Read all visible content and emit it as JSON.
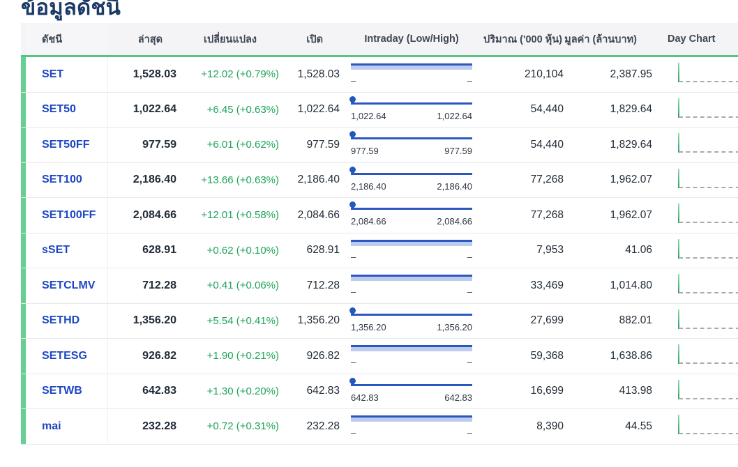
{
  "page": {
    "title": "ข้อมูลดัชนี"
  },
  "table": {
    "headers": [
      "ดัชนี",
      "ล่าสุด",
      "เปลี่ยนแปลง",
      "เปิด",
      "Intraday (Low/High)",
      "ปริมาณ ('000 หุ้น)",
      "มูลค่า (ล้านบาท)",
      "Day Chart"
    ],
    "rows": [
      {
        "index": "SET",
        "last": "1,528.03",
        "change": "+12.02 (+0.79%)",
        "open": "1,528.03",
        "intraday": {
          "type": "bar",
          "low": "–",
          "high": "–"
        },
        "volume": "210,104",
        "value": "2,387.95",
        "day_chart": "green-spike-flat-dashed"
      },
      {
        "index": "SET50",
        "last": "1,022.64",
        "change": "+6.45 (+0.63%)",
        "open": "1,022.64",
        "intraday": {
          "type": "line",
          "low": "1,022.64",
          "high": "1,022.64"
        },
        "volume": "54,440",
        "value": "1,829.64",
        "day_chart": "green-spike-flat-dashed"
      },
      {
        "index": "SET50FF",
        "last": "977.59",
        "change": "+6.01 (+0.62%)",
        "open": "977.59",
        "intraday": {
          "type": "line",
          "low": "977.59",
          "high": "977.59"
        },
        "volume": "54,440",
        "value": "1,829.64",
        "day_chart": "green-spike-flat-dashed"
      },
      {
        "index": "SET100",
        "last": "2,186.40",
        "change": "+13.66 (+0.63%)",
        "open": "2,186.40",
        "intraday": {
          "type": "line",
          "low": "2,186.40",
          "high": "2,186.40"
        },
        "volume": "77,268",
        "value": "1,962.07",
        "day_chart": "green-spike-flat-dashed"
      },
      {
        "index": "SET100FF",
        "last": "2,084.66",
        "change": "+12.01 (+0.58%)",
        "open": "2,084.66",
        "intraday": {
          "type": "line",
          "low": "2,084.66",
          "high": "2,084.66"
        },
        "volume": "77,268",
        "value": "1,962.07",
        "day_chart": "green-spike-flat-dashed"
      },
      {
        "index": "sSET",
        "last": "628.91",
        "change": "+0.62 (+0.10%)",
        "open": "628.91",
        "intraday": {
          "type": "bar",
          "low": "–",
          "high": "–"
        },
        "volume": "7,953",
        "value": "41.06",
        "day_chart": "green-spike-flat-dashed"
      },
      {
        "index": "SETCLMV",
        "last": "712.28",
        "change": "+0.41 (+0.06%)",
        "open": "712.28",
        "intraday": {
          "type": "bar",
          "low": "–",
          "high": "–"
        },
        "volume": "33,469",
        "value": "1,014.80",
        "day_chart": "green-spike-flat-dashed"
      },
      {
        "index": "SETHD",
        "last": "1,356.20",
        "change": "+5.54 (+0.41%)",
        "open": "1,356.20",
        "intraday": {
          "type": "line",
          "low": "1,356.20",
          "high": "1,356.20"
        },
        "volume": "27,699",
        "value": "882.01",
        "day_chart": "green-spike-flat-dashed"
      },
      {
        "index": "SETESG",
        "last": "926.82",
        "change": "+1.90 (+0.21%)",
        "open": "926.82",
        "intraday": {
          "type": "bar",
          "low": "–",
          "high": "–"
        },
        "volume": "59,368",
        "value": "1,638.86",
        "day_chart": "green-spike-flat-dashed"
      },
      {
        "index": "SETWB",
        "last": "642.83",
        "change": "+1.30 (+0.20%)",
        "open": "642.83",
        "intraday": {
          "type": "line",
          "low": "642.83",
          "high": "642.83"
        },
        "volume": "16,699",
        "value": "413.98",
        "day_chart": "green-spike-flat-dashed"
      },
      {
        "index": "mai",
        "last": "232.28",
        "change": "+0.72 (+0.31%)",
        "open": "232.28",
        "intraday": {
          "type": "bar",
          "low": "–",
          "high": "–"
        },
        "volume": "8,390",
        "value": "44.55",
        "day_chart": "green-spike-flat-dashed"
      }
    ]
  },
  "colors": {
    "title_navy": "#1b3a66",
    "accent_green_bar": "#67ce94",
    "header_underline_green": "#56c581",
    "index_link_blue": "#1c46c4",
    "change_up_green": "#1ea45b",
    "intraday_dark_blue": "#2b58c0",
    "intraday_light_blue": "#bdccee",
    "day_chart_spike_green": "#23a05b",
    "header_bg": "#f4f4f6"
  }
}
